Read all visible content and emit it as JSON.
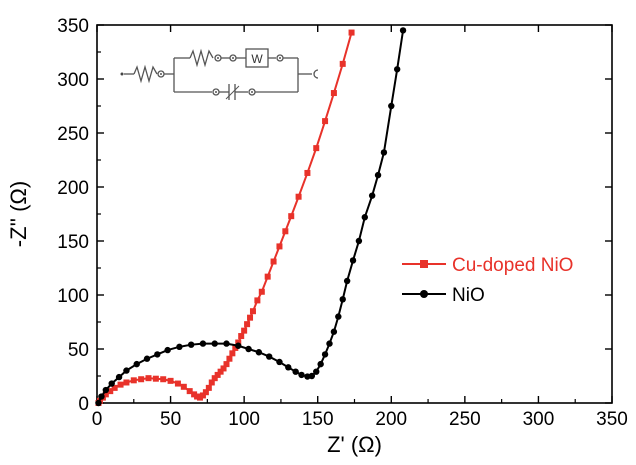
{
  "chart_data": {
    "type": "scatter",
    "xlabel": "Z' (Ω)",
    "ylabel": "-Z'' (Ω)",
    "xlim": [
      0,
      350
    ],
    "ylim": [
      0,
      350
    ],
    "xticks": [
      0,
      50,
      100,
      150,
      200,
      250,
      300,
      350
    ],
    "yticks": [
      0,
      50,
      100,
      150,
      200,
      250,
      300,
      350
    ],
    "grid": false,
    "legend_position": "right",
    "series": [
      {
        "name": "Cu-doped NiO",
        "color": "#e8322a",
        "marker": "square",
        "points": [
          [
            1,
            0
          ],
          [
            2,
            2
          ],
          [
            4,
            5
          ],
          [
            6,
            8
          ],
          [
            9,
            11
          ],
          [
            12,
            14
          ],
          [
            16,
            17
          ],
          [
            20,
            19
          ],
          [
            25,
            21
          ],
          [
            30,
            22
          ],
          [
            35,
            23
          ],
          [
            40,
            22.5
          ],
          [
            45,
            22
          ],
          [
            50,
            20.5
          ],
          [
            55,
            18
          ],
          [
            59,
            15
          ],
          [
            63,
            11
          ],
          [
            66,
            8
          ],
          [
            68,
            6
          ],
          [
            70,
            5
          ],
          [
            72,
            7
          ],
          [
            74,
            10
          ],
          [
            76,
            14
          ],
          [
            78,
            19
          ],
          [
            80,
            23
          ],
          [
            82,
            26
          ],
          [
            84,
            29
          ],
          [
            86,
            32
          ],
          [
            88,
            36
          ],
          [
            90,
            41
          ],
          [
            92,
            46
          ],
          [
            94,
            51
          ],
          [
            96,
            56
          ],
          [
            98,
            62
          ],
          [
            100,
            67
          ],
          [
            102,
            73
          ],
          [
            104,
            79
          ],
          [
            106,
            85
          ],
          [
            109,
            95
          ],
          [
            112,
            103
          ],
          [
            116,
            117
          ],
          [
            120,
            131
          ],
          [
            124,
            145
          ],
          [
            128,
            159
          ],
          [
            132,
            173
          ],
          [
            137,
            191
          ],
          [
            143,
            213
          ],
          [
            149,
            236
          ],
          [
            155,
            261
          ],
          [
            161,
            287
          ],
          [
            167,
            314
          ],
          [
            173,
            343
          ]
        ]
      },
      {
        "name": "NiO",
        "color": "#000000",
        "marker": "circle",
        "points": [
          [
            1,
            0
          ],
          [
            3,
            6
          ],
          [
            6,
            12
          ],
          [
            10,
            18
          ],
          [
            15,
            24
          ],
          [
            20,
            30
          ],
          [
            27,
            36
          ],
          [
            34,
            41
          ],
          [
            41,
            45
          ],
          [
            48,
            49
          ],
          [
            56,
            52
          ],
          [
            64,
            54
          ],
          [
            72,
            55
          ],
          [
            80,
            55
          ],
          [
            88,
            55
          ],
          [
            96,
            53
          ],
          [
            103,
            50
          ],
          [
            110,
            47
          ],
          [
            117,
            43
          ],
          [
            124,
            38
          ],
          [
            130,
            33
          ],
          [
            135,
            29
          ],
          [
            139,
            26
          ],
          [
            143,
            24.5
          ],
          [
            146,
            25
          ],
          [
            149,
            29
          ],
          [
            152,
            36
          ],
          [
            155,
            45
          ],
          [
            158,
            55
          ],
          [
            161,
            66
          ],
          [
            164,
            80
          ],
          [
            167,
            96
          ],
          [
            170,
            113
          ],
          [
            174,
            132
          ],
          [
            178,
            150
          ],
          [
            182,
            172
          ],
          [
            187,
            192
          ],
          [
            191,
            211
          ],
          [
            195,
            232
          ],
          [
            200,
            275
          ],
          [
            204,
            309
          ],
          [
            208,
            345
          ]
        ]
      }
    ]
  }
}
